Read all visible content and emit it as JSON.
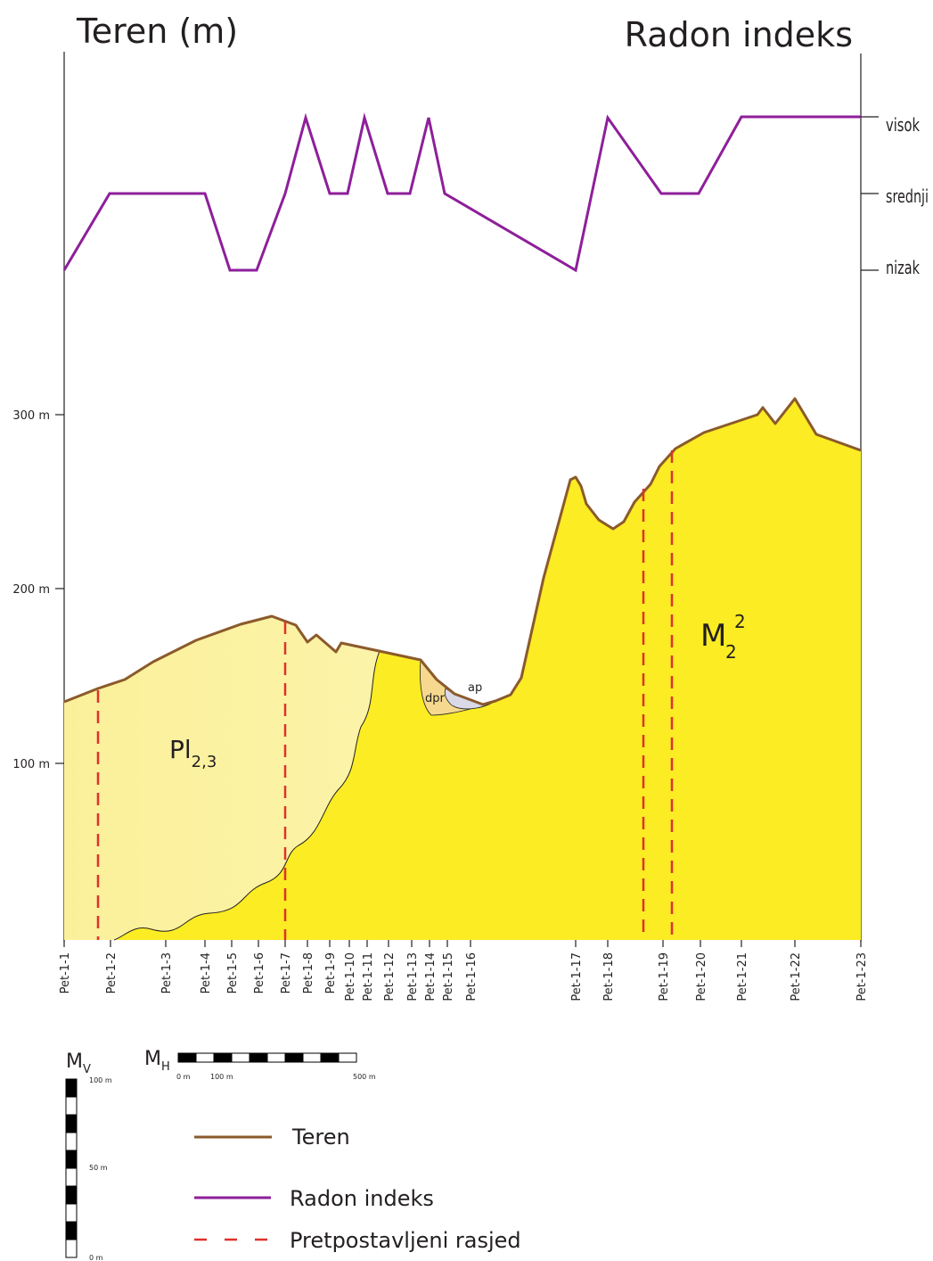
{
  "titles": {
    "left": "Teren (m)",
    "right": "Radon indeks"
  },
  "radon_levels": [
    "visok",
    "srednji",
    "nizak"
  ],
  "elevation_labels": [
    "300 m",
    "200 m",
    "100 m"
  ],
  "stations": [
    "Pet-1-1",
    "Pet-1-2",
    "Pet-1-3",
    "Pet-1-4",
    "Pet-1-5",
    "Pet-1-6",
    "Pet-1-7",
    "Pet-1-8",
    "Pet-1-9",
    "Pet-1-10",
    "Pet-1-11",
    "Pet-1-12",
    "Pet-1-13",
    "Pet-1-14",
    "Pet-1-15",
    "Pet-1-16",
    "Pet-1-17",
    "Pet-1-18",
    "Pet-1-19",
    "Pet-1-20",
    "Pet-1-21",
    "Pet-1-22",
    "Pet-1-23"
  ],
  "units": {
    "pliocene": {
      "name": "Pl",
      "subscript": "2,3"
    },
    "miocene": {
      "name": "M",
      "subscript": "2",
      "superscript": "2"
    },
    "dpr": "dpr",
    "ap": "ap"
  },
  "scales": {
    "vertical": {
      "name": "M",
      "subscript": "V",
      "labels": [
        "100 m",
        "50 m",
        "0 m"
      ]
    },
    "horizontal": {
      "name": "M",
      "subscript": "H",
      "labels": [
        "0 m",
        "100 m",
        "500 m"
      ]
    }
  },
  "legend": [
    "Teren",
    "Radon indeks",
    "Pretpostavljeni rasjed"
  ]
}
